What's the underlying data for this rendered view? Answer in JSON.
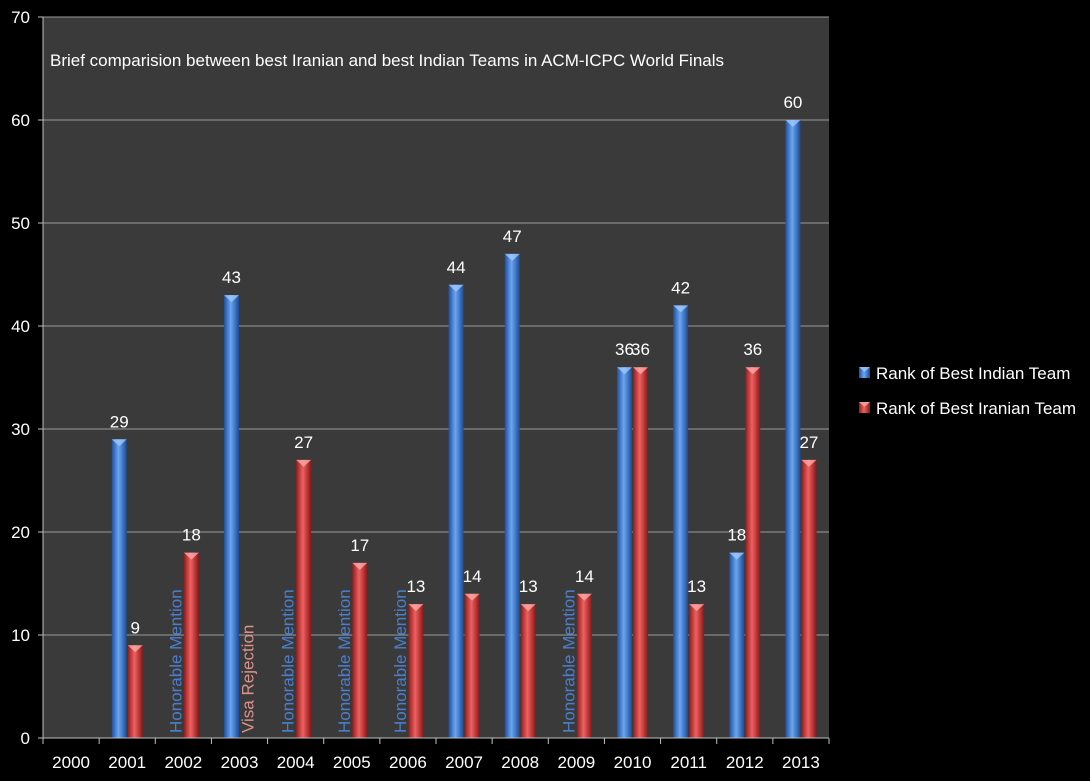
{
  "chart_data": {
    "type": "bar",
    "title": "Brief comparision between best Iranian and best Indian Teams in ACM-ICPC World Finals",
    "categories": [
      "2000",
      "2001",
      "2002",
      "2003",
      "2004",
      "2005",
      "2006",
      "2007",
      "2008",
      "2009",
      "2010",
      "2011",
      "2012",
      "2013"
    ],
    "ylim": [
      0,
      70
    ],
    "yticks": [
      0,
      10,
      20,
      30,
      40,
      50,
      60,
      70
    ],
    "grid": true,
    "legend_position": "right",
    "series": [
      {
        "name": "Rank of Best Indian Team",
        "color": "#3f7fd6",
        "values": [
          null,
          29,
          null,
          43,
          null,
          null,
          null,
          44,
          47,
          null,
          36,
          42,
          18,
          60
        ]
      },
      {
        "name": "Rank of Best Iranian Team",
        "color": "#d23a3a",
        "values": [
          null,
          9,
          18,
          null,
          27,
          17,
          13,
          14,
          13,
          14,
          36,
          13,
          36,
          27
        ]
      }
    ],
    "annotations": [
      {
        "category": "2002",
        "series": 0,
        "text": "Honorable Mention",
        "color": "#4a7fd0"
      },
      {
        "category": "2003",
        "series": 1,
        "text": "Visa Rejection",
        "color": "#d9938a"
      },
      {
        "category": "2004",
        "series": 0,
        "text": "Honorable Mention",
        "color": "#4a7fd0"
      },
      {
        "category": "2005",
        "series": 0,
        "text": "Honorable Mention",
        "color": "#4a7fd0"
      },
      {
        "category": "2006",
        "series": 0,
        "text": "Honorable Mention",
        "color": "#4a7fd0"
      },
      {
        "category": "2009",
        "series": 0,
        "text": "Honorable Mention",
        "color": "#4a7fd0"
      }
    ]
  }
}
